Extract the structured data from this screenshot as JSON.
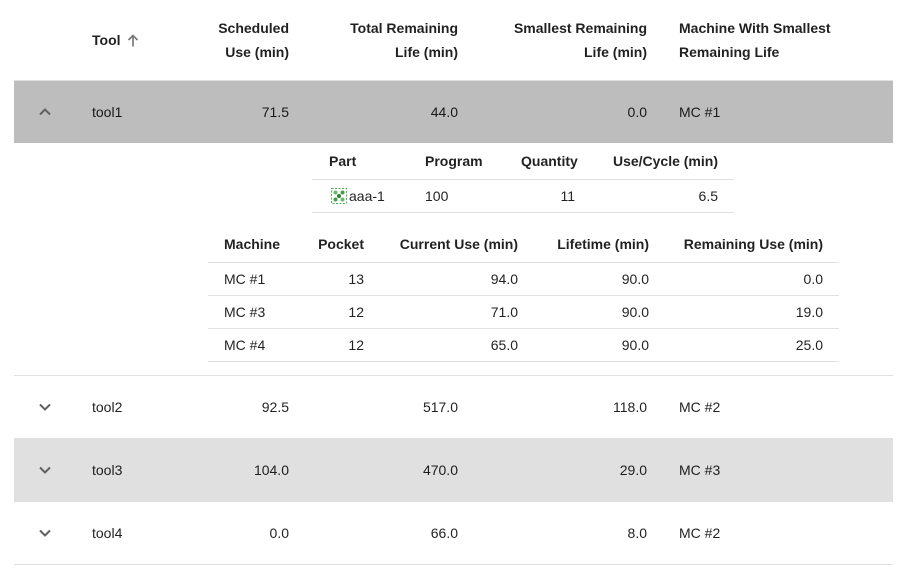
{
  "header": {
    "tool": "Tool",
    "scheduled_use_l1": "Scheduled",
    "scheduled_use_l2": "Use (min)",
    "total_remaining_l1": "Total Remaining",
    "total_remaining_l2": "Life (min)",
    "smallest_remaining_l1": "Smallest Remaining",
    "smallest_remaining_l2": "Life (min)",
    "machine_smallest_l1": "Machine With Smallest",
    "machine_smallest_l2": "Remaining Life"
  },
  "rows": [
    {
      "tool": "tool1",
      "scheduled": "71.5",
      "total": "44.0",
      "smallest": "0.0",
      "machine": "MC #1"
    },
    {
      "tool": "tool2",
      "scheduled": "92.5",
      "total": "517.0",
      "smallest": "118.0",
      "machine": "MC #2"
    },
    {
      "tool": "tool3",
      "scheduled": "104.0",
      "total": "470.0",
      "smallest": "29.0",
      "machine": "MC #3"
    },
    {
      "tool": "tool4",
      "scheduled": "0.0",
      "total": "66.0",
      "smallest": "8.0",
      "machine": "MC #2"
    }
  ],
  "parts_table": {
    "headers": {
      "part": "Part",
      "program": "Program",
      "quantity": "Quantity",
      "use_cycle": "Use/Cycle (min)"
    },
    "rows": [
      {
        "part": "aaa-1",
        "program": "100",
        "quantity": "11",
        "use_cycle": "6.5"
      }
    ]
  },
  "machines_table": {
    "headers": {
      "machine": "Machine",
      "pocket": "Pocket",
      "current_use": "Current Use (min)",
      "lifetime": "Lifetime (min)",
      "remaining_use": "Remaining Use (min)"
    },
    "rows": [
      {
        "machine": "MC #1",
        "pocket": "13",
        "current_use": "94.0",
        "lifetime": "90.0",
        "remaining_use": "0.0"
      },
      {
        "machine": "MC #3",
        "pocket": "12",
        "current_use": "71.0",
        "lifetime": "90.0",
        "remaining_use": "19.0"
      },
      {
        "machine": "MC #4",
        "pocket": "12",
        "current_use": "65.0",
        "lifetime": "90.0",
        "remaining_use": "25.0"
      }
    ]
  },
  "icons": {
    "sort": "arrow-up-icon",
    "collapse": "chevron-up-icon",
    "expand": "chevron-down-icon",
    "part": "part-icon"
  },
  "colors": {
    "expanded_row_bg": "#bdbdbd",
    "hover_row_bg": "#e0e0e0",
    "divider": "#e0e0e0",
    "part_icon": "#4caf50"
  }
}
